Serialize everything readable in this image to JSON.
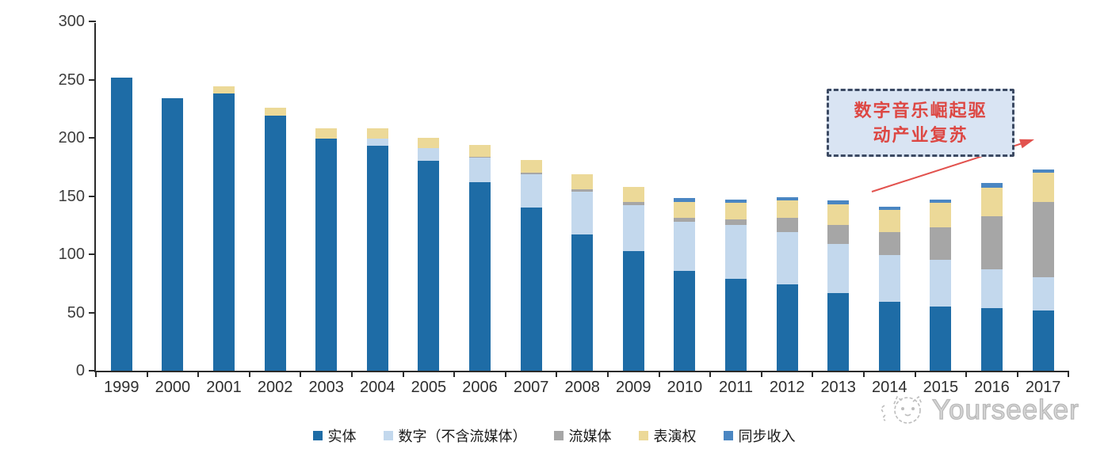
{
  "chart_data": {
    "type": "bar",
    "stacked": true,
    "title": "",
    "xlabel": "",
    "ylabel": "",
    "ylim": [
      0,
      300
    ],
    "yticks": [
      0,
      50,
      100,
      150,
      200,
      250,
      300
    ],
    "grid": false,
    "legend_position": "bottom",
    "categories": [
      "1999",
      "2000",
      "2001",
      "2002",
      "2003",
      "2004",
      "2005",
      "2006",
      "2007",
      "2008",
      "2009",
      "2010",
      "2011",
      "2012",
      "2013",
      "2014",
      "2015",
      "2016",
      "2017"
    ],
    "series": [
      {
        "name": "实体",
        "color": "#1e6ca6",
        "values": [
          252,
          234,
          238,
          219,
          199,
          193,
          180,
          162,
          140,
          117,
          103,
          86,
          79,
          74,
          67,
          59,
          55,
          54,
          52
        ]
      },
      {
        "name": "数字（不含流媒体）",
        "color": "#c3d8ed",
        "values": [
          0,
          0,
          0,
          0,
          0,
          6,
          11,
          21,
          29,
          37,
          39,
          42,
          46,
          45,
          42,
          40,
          40,
          33,
          28
        ]
      },
      {
        "name": "流媒体",
        "color": "#a6a6a6",
        "values": [
          0,
          0,
          0,
          0,
          0,
          0,
          0,
          1,
          1,
          2,
          3,
          3,
          5,
          12,
          16,
          20,
          28,
          46,
          65
        ]
      },
      {
        "name": "表演权",
        "color": "#ecd998",
        "values": [
          0,
          0,
          6,
          7,
          9,
          9,
          9,
          10,
          11,
          13,
          13,
          14,
          14,
          15,
          18,
          19,
          21,
          24,
          25
        ]
      },
      {
        "name": "同步收入",
        "color": "#4a86c2",
        "values": [
          0,
          0,
          0,
          0,
          0,
          0,
          0,
          0,
          0,
          0,
          0,
          3,
          3,
          3,
          3,
          3,
          3,
          4,
          3
        ]
      }
    ]
  },
  "annotation": {
    "line1": "数字音乐崛起驱",
    "line2": "动产业复苏",
    "text_color": "#dd4743",
    "box_fill": "#d9e4f3",
    "box_border": "#3c4a63",
    "arrow_color": "#e2524e"
  },
  "watermark": {
    "text": "Yourseeker",
    "icon": "cat-logo-icon",
    "color": "#b9b9b9"
  },
  "axis": {
    "line_color": "#2b2b2b",
    "tick_label_color": "#3d3d3d"
  }
}
